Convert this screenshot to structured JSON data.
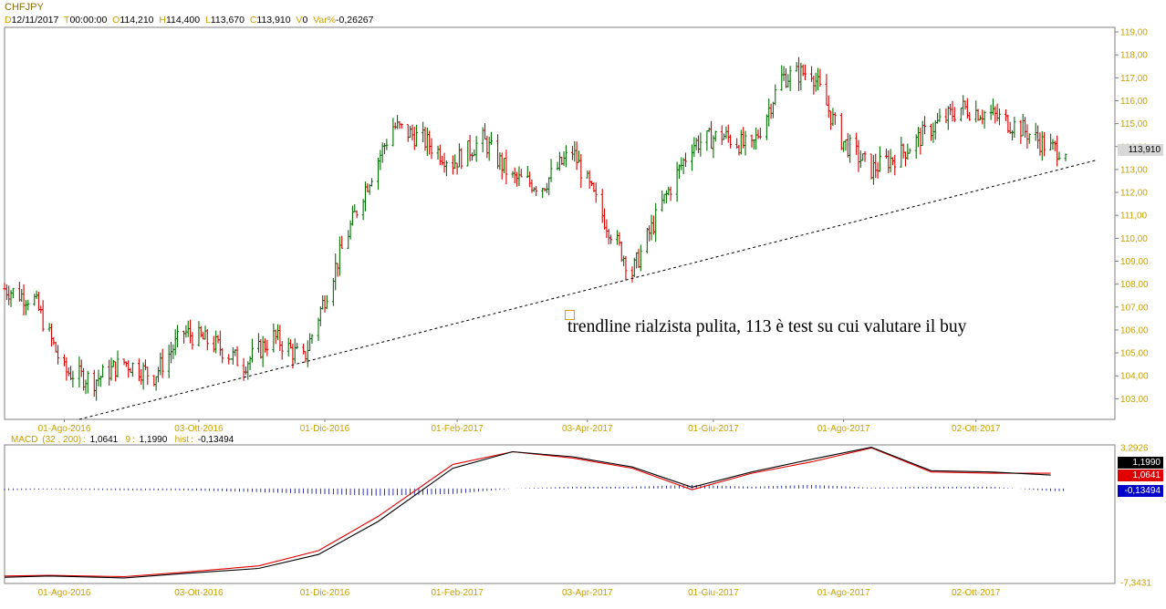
{
  "header": {
    "symbol": "CHFJPY",
    "fields": [
      {
        "key": "D",
        "value": "12/11/2017"
      },
      {
        "key": "T",
        "value": "00:00:00"
      },
      {
        "key": "O",
        "value": "114,210"
      },
      {
        "key": "H",
        "value": "114,400"
      },
      {
        "key": "L",
        "value": "113,670"
      },
      {
        "key": "C",
        "value": "113,910"
      },
      {
        "key": "V",
        "value": "0"
      },
      {
        "key": "Var%",
        "value": "-0,26267"
      }
    ]
  },
  "annotation": "trendline rialzista pulita, 113 è test su cui valutare il buy",
  "colors": {
    "up": "#007000",
    "down": "#d40000",
    "macd": "#000000",
    "signal": "#e00000",
    "hist": "#00008b",
    "axis_text": "#c8a000"
  },
  "chart_data": [
    {
      "type": "bar",
      "subtype": "ohlc-price",
      "y_ticks": [
        "103,00",
        "104,00",
        "105,00",
        "106,00",
        "107,00",
        "108,00",
        "109,00",
        "110,00",
        "111,00",
        "112,00",
        "113,00",
        "114,00",
        "115,00",
        "116,00",
        "117,00",
        "118,00",
        "119,00"
      ],
      "ylim": [
        102.1,
        119.2
      ],
      "x_tick_labels": [
        "01-Ago-2016",
        "03-Ott-2016",
        "01-Dic-2016",
        "01-Feb-2017",
        "03-Apr-2017",
        "01-Giu-2017",
        "01-Ago-2017",
        "02-Ott-2017"
      ],
      "last_price_label": "113,910",
      "close_path": [
        [
          "2016-07-04",
          107.8
        ],
        [
          "2016-07-18",
          107.3
        ],
        [
          "2016-08-01",
          104.2
        ],
        [
          "2016-08-15",
          103.8
        ],
        [
          "2016-08-29",
          104.6
        ],
        [
          "2016-09-12",
          104.0
        ],
        [
          "2016-09-26",
          105.9
        ],
        [
          "2016-10-10",
          105.4
        ],
        [
          "2016-10-24",
          104.5
        ],
        [
          "2016-11-07",
          105.7
        ],
        [
          "2016-11-21",
          104.7
        ],
        [
          "2016-12-05",
          108.5
        ],
        [
          "2016-12-19",
          112.0
        ],
        [
          "2017-01-02",
          114.9
        ],
        [
          "2017-01-16",
          114.3
        ],
        [
          "2017-01-30",
          113.3
        ],
        [
          "2017-02-13",
          114.3
        ],
        [
          "2017-02-27",
          112.6
        ],
        [
          "2017-03-13",
          112.3
        ],
        [
          "2017-03-27",
          113.8
        ],
        [
          "2017-04-10",
          111.0
        ],
        [
          "2017-04-24",
          108.5
        ],
        [
          "2017-05-08",
          111.5
        ],
        [
          "2017-05-22",
          114.1
        ],
        [
          "2017-06-05",
          114.5
        ],
        [
          "2017-06-19",
          113.9
        ],
        [
          "2017-07-03",
          117.0
        ],
        [
          "2017-07-17",
          117.3
        ],
        [
          "2017-07-31",
          114.3
        ],
        [
          "2017-08-14",
          113.0
        ],
        [
          "2017-08-28",
          113.7
        ],
        [
          "2017-09-11",
          114.8
        ],
        [
          "2017-09-25",
          115.7
        ],
        [
          "2017-10-09",
          115.4
        ],
        [
          "2017-10-23",
          114.8
        ],
        [
          "2017-11-06",
          113.9
        ]
      ],
      "trendline": {
        "from": [
          "2016-08-08",
          102.1
        ],
        "to": [
          "2017-11-27",
          113.4
        ]
      }
    },
    {
      "type": "line",
      "title": "MACD",
      "params": "(32 , 200)",
      "series": [
        {
          "name": "MACD",
          "value": "1,0641"
        },
        {
          "name": "9",
          "value": "1,1990"
        },
        {
          "name": "hist",
          "value": "-0,13494"
        }
      ],
      "y_ticks": [
        "3,2926",
        "-7,3431"
      ],
      "ylim": [
        -7.3431,
        3.2926
      ],
      "x_tick_labels": [
        "01-Ago-2016",
        "03-Ott-2016",
        "01-Dic-2016",
        "01-Feb-2017",
        "03-Apr-2017",
        "01-Giu-2017",
        "01-Ago-2017",
        "02-Ott-2017"
      ],
      "macd_path": [
        [
          "2016-07-04",
          -7.0
        ],
        [
          "2016-07-25",
          -6.9
        ],
        [
          "2016-08-29",
          -7.05
        ],
        [
          "2016-09-26",
          -6.7
        ],
        [
          "2016-10-31",
          -6.3
        ],
        [
          "2016-11-28",
          -5.2
        ],
        [
          "2016-12-26",
          -2.6
        ],
        [
          "2017-01-30",
          1.6
        ],
        [
          "2017-02-27",
          2.9
        ],
        [
          "2017-03-27",
          2.5
        ],
        [
          "2017-04-24",
          1.7
        ],
        [
          "2017-05-22",
          0.1
        ],
        [
          "2017-06-19",
          1.3
        ],
        [
          "2017-07-17",
          2.3
        ],
        [
          "2017-08-14",
          3.25
        ],
        [
          "2017-09-11",
          1.4
        ],
        [
          "2017-10-09",
          1.3
        ],
        [
          "2017-11-06",
          1.06
        ]
      ],
      "signal_path": [
        [
          "2016-07-04",
          -6.9
        ],
        [
          "2016-07-25",
          -6.85
        ],
        [
          "2016-08-29",
          -6.95
        ],
        [
          "2016-09-26",
          -6.6
        ],
        [
          "2016-10-31",
          -6.1
        ],
        [
          "2016-11-28",
          -4.9
        ],
        [
          "2016-12-26",
          -2.2
        ],
        [
          "2017-01-30",
          1.9
        ],
        [
          "2017-02-27",
          2.9
        ],
        [
          "2017-03-27",
          2.4
        ],
        [
          "2017-04-24",
          1.6
        ],
        [
          "2017-05-22",
          -0.1
        ],
        [
          "2017-06-19",
          1.2
        ],
        [
          "2017-07-17",
          2.1
        ],
        [
          "2017-08-14",
          3.2
        ],
        [
          "2017-09-11",
          1.3
        ],
        [
          "2017-10-09",
          1.2
        ],
        [
          "2017-11-06",
          1.2
        ]
      ]
    }
  ]
}
